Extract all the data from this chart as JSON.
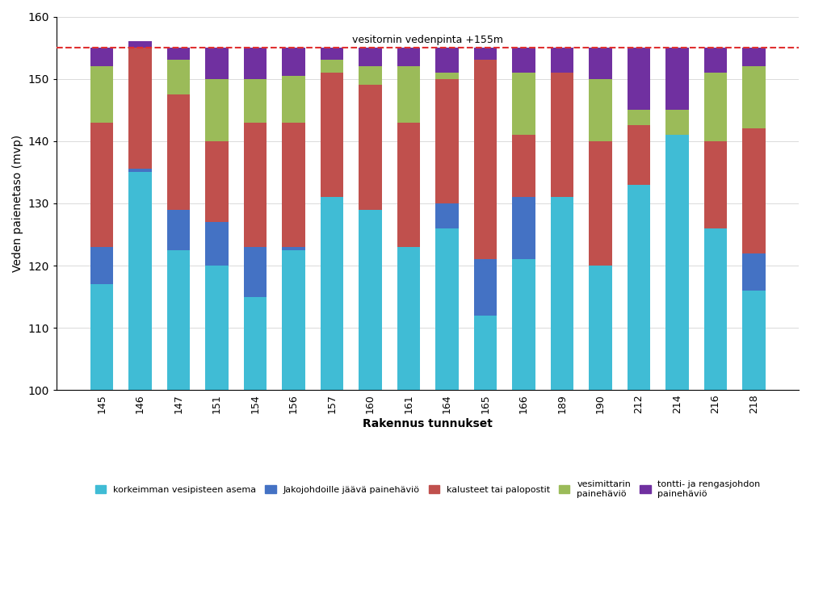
{
  "categories": [
    "145",
    "146",
    "147",
    "151",
    "154",
    "156",
    "157",
    "160",
    "161",
    "164",
    "165",
    "166",
    "189",
    "190",
    "212",
    "214",
    "216",
    "218"
  ],
  "seg1_top": [
    117,
    135,
    122.5,
    120,
    115,
    122.5,
    131,
    129,
    123,
    126,
    112,
    121,
    131,
    120,
    133,
    141,
    126,
    116
  ],
  "seg2_top": [
    123,
    135.5,
    129,
    127,
    123,
    123,
    131,
    129,
    123,
    130,
    121,
    131,
    131,
    120,
    133,
    141,
    126,
    122
  ],
  "seg3_top": [
    143,
    155,
    147.5,
    140,
    143,
    143,
    151,
    149,
    143,
    150,
    153,
    141,
    151,
    140,
    142.5,
    141,
    140,
    142
  ],
  "seg4_top": [
    152,
    155,
    153,
    150,
    150,
    150.5,
    153,
    152,
    152,
    151,
    153,
    151,
    151,
    150,
    145,
    145,
    151,
    152
  ],
  "seg5_top": [
    155,
    156,
    155,
    155,
    155,
    155,
    155,
    155,
    155,
    155,
    155,
    155,
    155,
    155,
    155,
    155,
    155,
    155
  ],
  "colors": {
    "seg1": "#40BCD5",
    "seg2": "#4472C4",
    "seg3": "#C0504D",
    "seg4": "#9BBB59",
    "seg5": "#7030A0"
  },
  "ylabel": "Veden paienetaso (mvp)",
  "xlabel": "Rakennus tunnukset",
  "ylim": [
    100,
    160
  ],
  "yticks": [
    100,
    110,
    120,
    130,
    140,
    150,
    160
  ],
  "hline_y": 155,
  "hline_label": "vesitornin vedenpinta +155m",
  "hline_color": "#E03030",
  "legend_labels": [
    "korkeimman vesipisteen asema",
    "Jakojohdoille jäävä painehäviö",
    "kalusteet tai palopostit",
    "vesimittarin\npainehäviö",
    "tontti- ja rengasjohdon\npainehäviö"
  ],
  "bar_width": 0.6,
  "base": 100
}
